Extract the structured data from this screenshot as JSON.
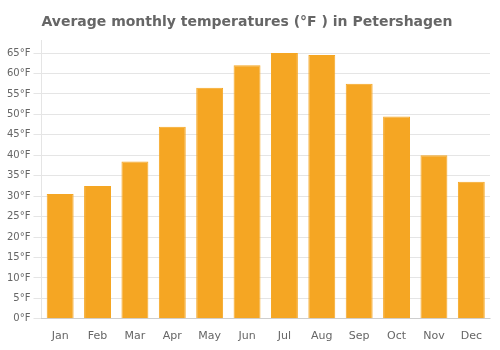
{
  "chart_data": {
    "type": "bar",
    "title": "Average monthly temperatures (°F ) in Petershagen",
    "categories": [
      "Jan",
      "Feb",
      "Mar",
      "Apr",
      "May",
      "Jun",
      "Jul",
      "Aug",
      "Sep",
      "Oct",
      "Nov",
      "Dec"
    ],
    "values": [
      30.5,
      32.5,
      38.5,
      47.0,
      56.5,
      62.0,
      65.0,
      64.5,
      57.5,
      49.5,
      40.0,
      33.5
    ],
    "color": "#F5A623",
    "ylim": [
      0,
      68
    ],
    "yticks": [
      {
        "value": 0,
        "label": "0°F"
      },
      {
        "value": 5,
        "label": "5°F"
      },
      {
        "value": 10,
        "label": "10°F"
      },
      {
        "value": 15,
        "label": "15°F"
      },
      {
        "value": 20,
        "label": "20°F"
      },
      {
        "value": 25,
        "label": "25°F"
      },
      {
        "value": 30,
        "label": "30°F"
      },
      {
        "value": 35,
        "label": "35°F"
      },
      {
        "value": 40,
        "label": "40°F"
      },
      {
        "value": 45,
        "label": "45°F"
      },
      {
        "value": 50,
        "label": "50°F"
      },
      {
        "value": 55,
        "label": "55°F"
      },
      {
        "value": 60,
        "label": "60°F"
      },
      {
        "value": 65,
        "label": "65°F"
      }
    ],
    "grid": true
  }
}
